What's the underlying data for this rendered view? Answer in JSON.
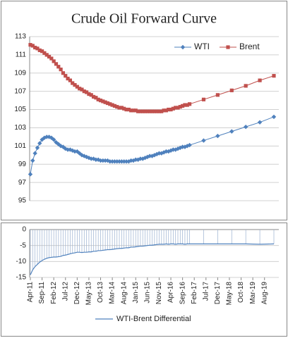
{
  "chart_data": [
    {
      "type": "line",
      "title": "Crude Oil Forward Curve",
      "x": [
        "Apr-11",
        "May-11",
        "Jun-11",
        "Jul-11",
        "Aug-11",
        "Sep-11",
        "Oct-11",
        "Nov-11",
        "Dec-11",
        "Jan-12",
        "Feb-12",
        "Mar-12",
        "Apr-12",
        "May-12",
        "Jun-12",
        "Jul-12",
        "Aug-12",
        "Sep-12",
        "Oct-12",
        "Nov-12",
        "Dec-12",
        "Jan-13",
        "Feb-13",
        "Mar-13",
        "Apr-13",
        "May-13",
        "Jun-13",
        "Jul-13",
        "Aug-13",
        "Sep-13",
        "Oct-13",
        "Nov-13",
        "Dec-13",
        "Jan-14",
        "Feb-14",
        "Mar-14",
        "Apr-14",
        "May-14",
        "Jun-14",
        "Jul-14",
        "Aug-14",
        "Sep-14",
        "Oct-14",
        "Nov-14",
        "Dec-14",
        "Jan-15",
        "Feb-15",
        "Mar-15",
        "Apr-15",
        "May-15",
        "Jun-15",
        "Jul-15",
        "Aug-15",
        "Sep-15",
        "Oct-15",
        "Nov-15",
        "Dec-15",
        "Jan-16",
        "Feb-16",
        "Mar-16",
        "Apr-16",
        "May-16",
        "Jun-16",
        "Jul-16",
        "Aug-16",
        "Sep-16",
        "Oct-16",
        "Nov-16",
        "Dec-16",
        "Jun-17",
        "Dec-17",
        "Jun-18",
        "Dec-18",
        "Jun-19",
        "Dec-19"
      ],
      "series": [
        {
          "name": "WTI",
          "color": "#4f81bd",
          "marker": "diamond",
          "values": [
            97.9,
            99.4,
            100.2,
            100.8,
            101.3,
            101.7,
            101.9,
            102.0,
            102.0,
            101.9,
            101.7,
            101.4,
            101.2,
            101.0,
            100.9,
            100.7,
            100.6,
            100.6,
            100.5,
            100.4,
            100.4,
            100.2,
            100.0,
            99.9,
            99.8,
            99.7,
            99.6,
            99.6,
            99.5,
            99.5,
            99.4,
            99.4,
            99.4,
            99.4,
            99.3,
            99.3,
            99.3,
            99.3,
            99.3,
            99.3,
            99.3,
            99.3,
            99.3,
            99.4,
            99.4,
            99.5,
            99.5,
            99.6,
            99.6,
            99.7,
            99.8,
            99.9,
            99.9,
            100.0,
            100.1,
            100.2,
            100.2,
            100.3,
            100.4,
            100.4,
            100.5,
            100.6,
            100.6,
            100.7,
            100.8,
            100.9,
            100.9,
            101.0,
            101.1,
            101.6,
            102.1,
            102.6,
            103.1,
            103.6,
            104.2
          ]
        },
        {
          "name": "Brent",
          "color": "#c0504d",
          "marker": "square",
          "values": [
            112.1,
            112.0,
            111.8,
            111.7,
            111.5,
            111.4,
            111.2,
            111.0,
            110.8,
            110.6,
            110.3,
            110.0,
            109.7,
            109.4,
            109.0,
            108.7,
            108.4,
            108.2,
            107.9,
            107.7,
            107.5,
            107.3,
            107.2,
            107.0,
            106.9,
            106.7,
            106.6,
            106.4,
            106.3,
            106.1,
            106.0,
            105.9,
            105.8,
            105.7,
            105.6,
            105.5,
            105.4,
            105.3,
            105.2,
            105.2,
            105.1,
            105.0,
            105.0,
            104.9,
            104.9,
            104.9,
            104.8,
            104.8,
            104.8,
            104.8,
            104.8,
            104.8,
            104.8,
            104.8,
            104.8,
            104.8,
            104.8,
            104.9,
            104.9,
            105.0,
            105.0,
            105.1,
            105.2,
            105.2,
            105.3,
            105.4,
            105.5,
            105.5,
            105.6,
            106.1,
            106.6,
            107.1,
            107.6,
            108.2,
            108.7
          ]
        }
      ],
      "ylim": [
        95,
        113
      ],
      "yticks": [
        95,
        97,
        99,
        101,
        103,
        105,
        107,
        109,
        111,
        113
      ],
      "grid": true,
      "legend": "top-right"
    },
    {
      "type": "line",
      "x": [
        "Apr-11",
        "May-11",
        "Jun-11",
        "Jul-11",
        "Aug-11",
        "Sep-11",
        "Oct-11",
        "Nov-11",
        "Dec-11",
        "Jan-12",
        "Feb-12",
        "Mar-12",
        "Apr-12",
        "May-12",
        "Jun-12",
        "Jul-12",
        "Aug-12",
        "Sep-12",
        "Oct-12",
        "Nov-12",
        "Dec-12",
        "Jan-13",
        "Feb-13",
        "Mar-13",
        "Apr-13",
        "May-13",
        "Jun-13",
        "Jul-13",
        "Aug-13",
        "Sep-13",
        "Oct-13",
        "Nov-13",
        "Dec-13",
        "Jan-14",
        "Feb-14",
        "Mar-14",
        "Apr-14",
        "May-14",
        "Jun-14",
        "Jul-14",
        "Aug-14",
        "Sep-14",
        "Oct-14",
        "Nov-14",
        "Dec-14",
        "Jan-15",
        "Feb-15",
        "Mar-15",
        "Apr-15",
        "May-15",
        "Jun-15",
        "Jul-15",
        "Aug-15",
        "Sep-15",
        "Oct-15",
        "Nov-15",
        "Dec-15",
        "Jan-16",
        "Feb-16",
        "Mar-16",
        "Apr-16",
        "May-16",
        "Jun-16",
        "Jul-16",
        "Aug-16",
        "Sep-16",
        "Oct-16",
        "Nov-16",
        "Dec-16",
        "Jun-17",
        "Dec-17",
        "Jun-18",
        "Dec-18",
        "Jun-19",
        "Dec-19"
      ],
      "xticks": [
        "Apr-11",
        "Sep-11",
        "Feb-12",
        "Jul-12",
        "Dec-12",
        "May-13",
        "Oct-13",
        "Mar-14",
        "Aug-14",
        "Jan-15",
        "Jun-15",
        "Nov-15",
        "Apr-16",
        "Sep-16",
        "Feb-17",
        "Jul-17",
        "Dec-17",
        "May-18",
        "Oct-18",
        "Mar-19",
        "Aug-19"
      ],
      "series": [
        {
          "name": "WTI-Brent Differential",
          "color": "#4f81bd",
          "values": [
            -14.2,
            -12.6,
            -11.6,
            -10.9,
            -10.2,
            -9.7,
            -9.3,
            -9.0,
            -8.8,
            -8.7,
            -8.6,
            -8.6,
            -8.5,
            -8.4,
            -8.1,
            -8.0,
            -7.8,
            -7.6,
            -7.4,
            -7.3,
            -7.1,
            -7.1,
            -7.2,
            -7.1,
            -7.1,
            -7.0,
            -7.0,
            -6.8,
            -6.8,
            -6.6,
            -6.6,
            -6.5,
            -6.4,
            -6.3,
            -6.3,
            -6.2,
            -6.1,
            -6.0,
            -5.9,
            -5.9,
            -5.8,
            -5.7,
            -5.7,
            -5.5,
            -5.5,
            -5.4,
            -5.3,
            -5.2,
            -5.2,
            -5.1,
            -5.0,
            -4.9,
            -4.9,
            -4.8,
            -4.7,
            -4.6,
            -4.6,
            -4.6,
            -4.5,
            -4.6,
            -4.5,
            -4.5,
            -4.6,
            -4.5,
            -4.5,
            -4.5,
            -4.6,
            -4.5,
            -4.5,
            -4.5,
            -4.5,
            -4.5,
            -4.5,
            -4.6,
            -4.5
          ]
        }
      ],
      "ylim": [
        -15,
        0
      ],
      "yticks": [
        0,
        -5,
        -10,
        -15
      ],
      "grid": true,
      "drop_lines": true,
      "legend": "bottom"
    }
  ]
}
